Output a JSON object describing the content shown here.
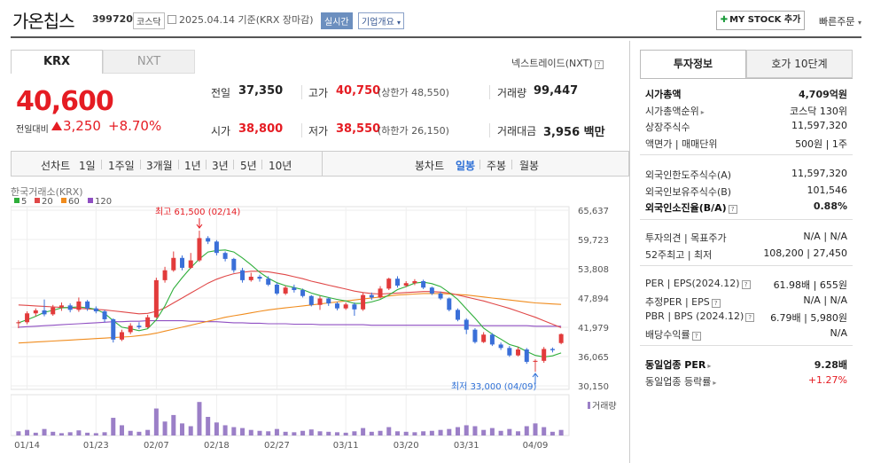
{
  "header": {
    "name": "가온칩스",
    "code": "399720",
    "market": "코스닥",
    "date": "2025.04.14 기준(KRX 장마감)",
    "realtime": "실시간",
    "corp_overview": "기업개요",
    "mystock": "MY STOCK 추가",
    "quick_order": "빠른주문"
  },
  "tabs": {
    "krx": "KRX",
    "nxt": "NXT",
    "nxt_link": "넥스트레이드(NXT)"
  },
  "quote": {
    "price": "40,600",
    "change_label": "전일대비",
    "change": "3,250",
    "change_pct": "+8.70%",
    "prev_close_label": "전일",
    "prev_close": "37,350",
    "open_label": "시가",
    "open": "38,800",
    "high_label": "고가",
    "high": "40,750",
    "upper_limit": "(상한가 48,550)",
    "low_label": "저가",
    "low": "38,550",
    "lower_limit": "(하한가 26,150)",
    "volume_label": "거래량",
    "volume": "99,447",
    "amount_label": "거래대금",
    "amount": "3,956 백만"
  },
  "toolbar": {
    "line_chart": "선차트",
    "periods": [
      "1일",
      "1주일",
      "3개월",
      "1년",
      "3년",
      "5년",
      "10년"
    ],
    "candle_chart": "봉차트",
    "candle_periods": [
      "일봉",
      "주봉",
      "월봉"
    ]
  },
  "chart_data": {
    "type": "candlestick",
    "source_label": "한국거래소(KRX)",
    "legend": [
      {
        "name": "5",
        "color": "#2eae3a"
      },
      {
        "name": "20",
        "color": "#e04848"
      },
      {
        "name": "60",
        "color": "#f08c1e"
      },
      {
        "name": "120",
        "color": "#8f4fc2"
      }
    ],
    "y_ticks": [
      "65,637",
      "59,723",
      "53,808",
      "47,894",
      "41,979",
      "36,065",
      "30,150"
    ],
    "ylim": [
      30150,
      65637
    ],
    "x_ticks": [
      "01/14",
      "01/23",
      "02/07",
      "02/18",
      "02/27",
      "03/11",
      "03/20",
      "03/31",
      "04/09"
    ],
    "high_note": "최고 61,500 (02/14)",
    "low_note": "최저 33,000 (04/09)",
    "volume_label": "거래량",
    "candles": [
      [
        42800,
        43000,
        41800,
        43400
      ],
      [
        43000,
        44800,
        42600,
        45200
      ],
      [
        44800,
        45400,
        44200,
        45800
      ],
      [
        45400,
        44600,
        44200,
        47600
      ],
      [
        44600,
        46000,
        44300,
        46500
      ],
      [
        46000,
        46400,
        45300,
        47000
      ],
      [
        46400,
        45500,
        45000,
        46800
      ],
      [
        45500,
        47200,
        45100,
        48000
      ],
      [
        47200,
        45800,
        45300,
        47500
      ],
      [
        45800,
        45200,
        44800,
        46200
      ],
      [
        45200,
        43600,
        43000,
        45500
      ],
      [
        43600,
        39500,
        38900,
        43800
      ],
      [
        39500,
        41000,
        39200,
        41500
      ],
      [
        41000,
        42300,
        40600,
        42800
      ],
      [
        42300,
        42000,
        41600,
        43000
      ],
      [
        42000,
        44000,
        41800,
        44500
      ],
      [
        44000,
        51500,
        43800,
        52000
      ],
      [
        51500,
        53500,
        51000,
        54200
      ],
      [
        53500,
        56000,
        53200,
        57300
      ],
      [
        56000,
        54000,
        53500,
        56500
      ],
      [
        54000,
        55500,
        53800,
        57000
      ],
      [
        55500,
        60000,
        55200,
        61500
      ],
      [
        60000,
        59300,
        58800,
        60400
      ],
      [
        59300,
        57000,
        56500,
        59600
      ],
      [
        57000,
        55800,
        55300,
        57300
      ],
      [
        55800,
        53500,
        53000,
        56000
      ],
      [
        53500,
        51500,
        51000,
        54000
      ],
      [
        51500,
        52200,
        51200,
        53000
      ],
      [
        52200,
        51800,
        51200,
        52600
      ],
      [
        51800,
        50600,
        50300,
        52300
      ],
      [
        50600,
        48800,
        48500,
        51000
      ],
      [
        48800,
        50000,
        48500,
        50400
      ],
      [
        50000,
        49500,
        49000,
        50600
      ],
      [
        49500,
        48300,
        48000,
        49800
      ],
      [
        48300,
        46500,
        46200,
        48500
      ],
      [
        46500,
        47800,
        45500,
        48300
      ],
      [
        47800,
        46800,
        46300,
        48000
      ],
      [
        46800,
        45800,
        45400,
        47100
      ],
      [
        45800,
        46600,
        45500,
        47000
      ],
      [
        46600,
        45600,
        44300,
        47000
      ],
      [
        45600,
        48500,
        45300,
        49000
      ],
      [
        48500,
        48000,
        47500,
        49000
      ],
      [
        48000,
        49800,
        47800,
        50300
      ],
      [
        49800,
        51800,
        49500,
        52000
      ],
      [
        51800,
        50400,
        50000,
        52300
      ],
      [
        50400,
        50900,
        50100,
        51300
      ],
      [
        50900,
        51300,
        50500,
        51700
      ],
      [
        51300,
        50000,
        49700,
        51600
      ],
      [
        50000,
        48800,
        48500,
        50200
      ],
      [
        48800,
        47800,
        47500,
        49200
      ],
      [
        47800,
        45500,
        45200,
        48000
      ],
      [
        45500,
        43500,
        43200,
        45800
      ],
      [
        43500,
        41500,
        40600,
        43800
      ],
      [
        41500,
        39000,
        38700,
        41800
      ],
      [
        39000,
        40500,
        38800,
        41000
      ],
      [
        40500,
        38500,
        38200,
        40800
      ],
      [
        38500,
        37800,
        37400,
        38900
      ],
      [
        37800,
        36300,
        36000,
        38200
      ],
      [
        36300,
        37500,
        36100,
        38000
      ],
      [
        37500,
        35000,
        34600,
        37800
      ],
      [
        35000,
        35200,
        33000,
        35500
      ],
      [
        35200,
        37600,
        34800,
        38000
      ],
      [
        37600,
        37350,
        36900,
        37900
      ],
      [
        38800,
        40600,
        38550,
        40750
      ]
    ],
    "ma_series": {
      "ma5": [
        42900,
        43500,
        44200,
        45000,
        45400,
        45900,
        46000,
        46100,
        45900,
        45600,
        44800,
        43300,
        42000,
        41700,
        41300,
        41700,
        43500,
        46300,
        49800,
        52000,
        54000,
        55800,
        57200,
        57500,
        57600,
        57200,
        56000,
        54600,
        53100,
        51900,
        51000,
        50400,
        50000,
        49600,
        48900,
        48400,
        48000,
        47600,
        47300,
        46800,
        46800,
        47100,
        47600,
        48500,
        49600,
        50200,
        50900,
        51100,
        50800,
        50200,
        49000,
        47600,
        45700,
        43800,
        41800,
        40600,
        39600,
        38500,
        38000,
        37100,
        36300,
        36000,
        36200,
        36800
      ],
      "ma20": [
        46500,
        46400,
        46300,
        46200,
        46100,
        46000,
        45900,
        45800,
        45700,
        45600,
        45500,
        45300,
        45100,
        44900,
        44700,
        44800,
        45200,
        45900,
        46900,
        47900,
        48900,
        49900,
        50900,
        51700,
        52300,
        52800,
        53100,
        53300,
        53300,
        53200,
        52900,
        52600,
        52200,
        51800,
        51300,
        50900,
        50500,
        50100,
        49700,
        49300,
        49000,
        48800,
        48700,
        48800,
        48900,
        49000,
        49100,
        49200,
        49200,
        49100,
        48900,
        48500,
        48100,
        47700,
        47300,
        46800,
        46300,
        45800,
        45200,
        44600,
        44000,
        43300,
        42600,
        41900
      ],
      "ma60": [
        38800,
        38900,
        39000,
        39100,
        39200,
        39300,
        39400,
        39500,
        39600,
        39700,
        39800,
        39900,
        40000,
        40100,
        40300,
        40500,
        40800,
        41200,
        41600,
        42000,
        42400,
        42800,
        43200,
        43600,
        44000,
        44300,
        44600,
        44900,
        45200,
        45500,
        45700,
        45900,
        46100,
        46300,
        46500,
        46700,
        46900,
        47100,
        47300,
        47500,
        47700,
        47900,
        48100,
        48300,
        48500,
        48600,
        48700,
        48800,
        48800,
        48800,
        48700,
        48600,
        48500,
        48300,
        48100,
        47900,
        47700,
        47500,
        47300,
        47100,
        46900,
        46800,
        46700,
        46600
      ],
      "ma120": [
        42000,
        42100,
        42200,
        42300,
        42400,
        42500,
        42600,
        42700,
        42800,
        42900,
        43000,
        43100,
        43100,
        43200,
        43200,
        43300,
        43300,
        43300,
        43300,
        43300,
        43200,
        43200,
        43100,
        43100,
        43000,
        42900,
        42900,
        42800,
        42800,
        42700,
        42700,
        42700,
        42600,
        42600,
        42600,
        42500,
        42500,
        42500,
        42500,
        42500,
        42500,
        42400,
        42400,
        42400,
        42400,
        42400,
        42400,
        42400,
        42400,
        42400,
        42400,
        42400,
        42400,
        42300,
        42300,
        42300,
        42300,
        42300,
        42300,
        42300,
        42200,
        42200,
        42200,
        42200
      ]
    },
    "volume": [
      9,
      12,
      6,
      14,
      8,
      5,
      7,
      11,
      6,
      5,
      7,
      38,
      22,
      10,
      8,
      12,
      58,
      30,
      44,
      26,
      20,
      72,
      40,
      28,
      22,
      18,
      16,
      12,
      10,
      9,
      14,
      8,
      7,
      10,
      13,
      9,
      8,
      7,
      6,
      9,
      16,
      8,
      10,
      18,
      9,
      8,
      7,
      9,
      10,
      12,
      14,
      18,
      22,
      20,
      12,
      16,
      10,
      14,
      9,
      20,
      26,
      18,
      8,
      12
    ],
    "volume_ylim": [
      0,
      80
    ]
  },
  "right_panel": {
    "tab_info": "투자정보",
    "tab_order": "호가 10단계",
    "rows1": [
      {
        "label": "시가총액",
        "value": "4,709억원",
        "bold": true
      },
      {
        "label": "시가총액순위",
        "value": "코스닥 130위",
        "arrow": true
      },
      {
        "label": "상장주식수",
        "value": "11,597,320"
      },
      {
        "label": "액면가 | 매매단위",
        "value": "500원 | 1주"
      }
    ],
    "rows2": [
      {
        "label": "외국인한도주식수(A)",
        "value": "11,597,320"
      },
      {
        "label": "외국인보유주식수(B)",
        "value": "101,546"
      },
      {
        "label": "외국인소진율(B/A)",
        "value": "0.88%",
        "bold": true,
        "q": true
      }
    ],
    "rows3": [
      {
        "label": "투자의견 | 목표주가",
        "value": "N/A | N/A"
      },
      {
        "label": "52주최고 | 최저",
        "value": "108,200 | 27,450"
      }
    ],
    "rows4": [
      {
        "label": "PER | EPS(2024.12)",
        "value": "61.98배 | 655원",
        "q": true
      },
      {
        "label": "추정PER | EPS",
        "value": "N/A | N/A",
        "q": true
      },
      {
        "label": "PBR | BPS (2024.12)",
        "value": "6.79배 | 5,980원",
        "q": true
      },
      {
        "label": "배당수익률",
        "value": "N/A",
        "q": true
      }
    ],
    "rows5": [
      {
        "label": "동일업종 PER",
        "value": "9.28배",
        "bold": true,
        "arrow": true
      },
      {
        "label": "동일업종 등락률",
        "value": "+1.27%",
        "red": true,
        "arrow": true
      }
    ]
  }
}
